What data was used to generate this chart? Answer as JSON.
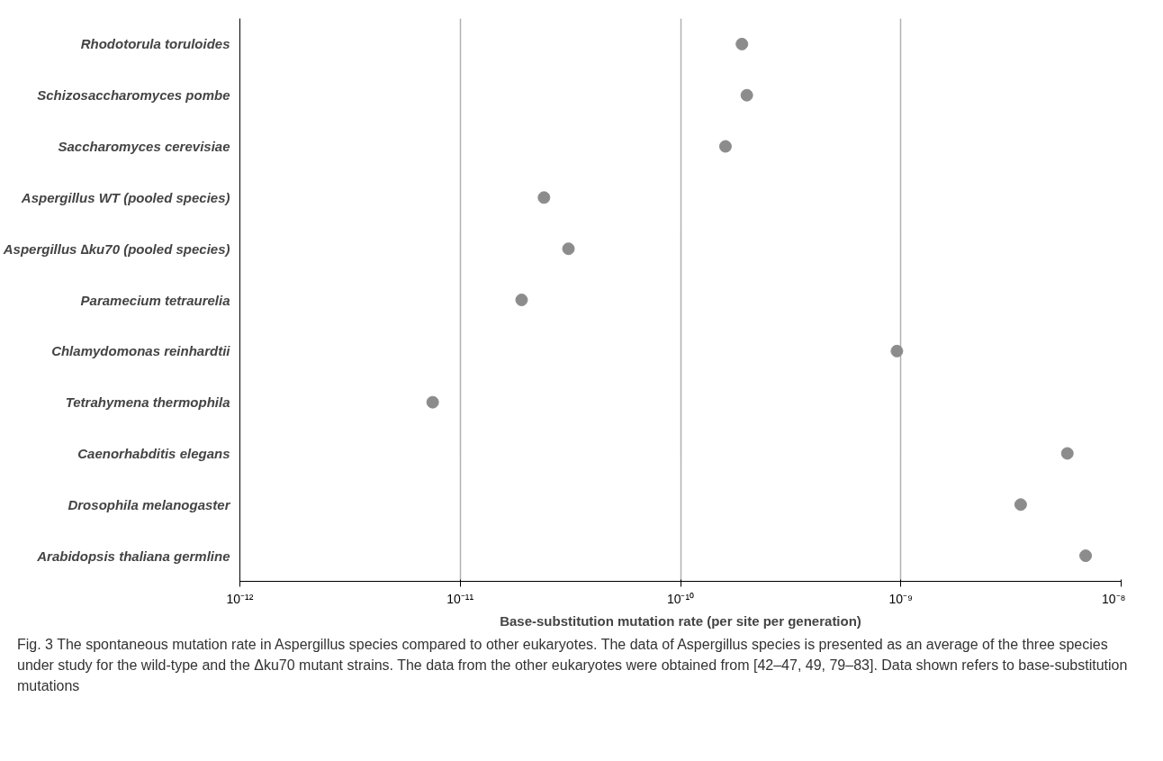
{
  "chart_data": {
    "type": "scatter",
    "orientation": "horizontal",
    "log": "x",
    "xlabel": "Base-substitution mutation rate (per site per generation)",
    "categories": [
      "Rhodotorula toruloides",
      "Schizosaccharomyces pombe",
      "Saccharomyces cerevisiae",
      "Aspergillus WT (pooled species)",
      "Aspergillus ∆ku70 (pooled species)",
      "Paramecium tetraurelia",
      "Chlamydomonas reinhardtii",
      "Tetrahymena thermophila",
      "Caenorhabditis elegans",
      "Drosophila melanogaster",
      "Arabidopsis thaliana germline"
    ],
    "series": [
      {
        "color": "#8c8c8c",
        "values": [
          1.9e-10,
          2e-10,
          1.6e-10,
          2.4e-11,
          3.1e-11,
          1.9e-11,
          9.6e-10,
          7.5e-12,
          5.7e-09,
          3.5e-09,
          6.9e-09
        ]
      }
    ],
    "xlim": [
      1e-12,
      1e-08
    ],
    "xticks": [
      {
        "value": 1e-12,
        "label": "10⁻¹²"
      },
      {
        "value": 1e-11,
        "label": "10⁻¹¹"
      },
      {
        "value": 1e-10,
        "label": "10⁻¹⁰"
      },
      {
        "value": 1e-09,
        "label": "10⁻⁹"
      },
      {
        "value": 1e-08,
        "label": "10⁻⁸"
      }
    ],
    "grid": "x",
    "marker": "circle",
    "annotations": [
      "Fig. 3 The spontaneous mutation rate in Aspergillus species compared to other eukaryotes. The data of Aspergillus species is presented as an average of the three species under study for the wild-type and the Δku70 mutant strains. The data from the other eukaryotes were obtained from [42–47, 49, 79–83]. Data shown refers to base-substitution mutations"
    ]
  }
}
